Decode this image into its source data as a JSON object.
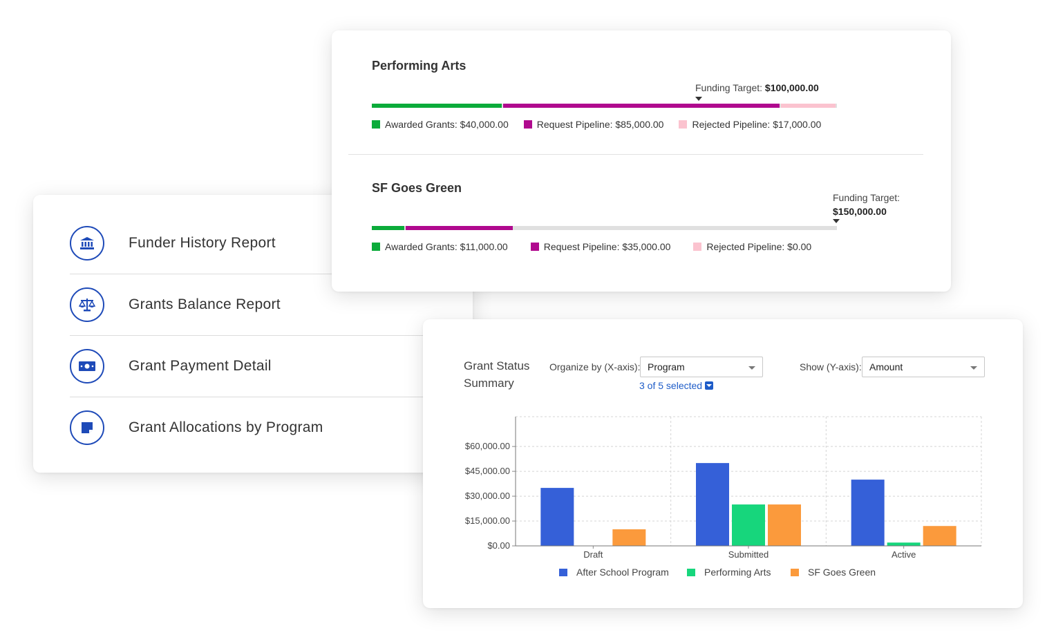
{
  "reports": {
    "items": [
      {
        "label": "Funder History Report",
        "icon": "bank-icon"
      },
      {
        "label": "Grants Balance Report",
        "icon": "scales-icon"
      },
      {
        "label": "Grant Payment Detail",
        "icon": "banknote-icon"
      },
      {
        "label": "Grant Allocations by Program",
        "icon": "note-icon"
      }
    ]
  },
  "funding": {
    "programs": [
      {
        "title": "Performing Arts",
        "target_label": "Funding Target:",
        "target_value": "$100,000.00",
        "awarded_label": "Awarded Grants: $40,000.00",
        "request_label": "Request Pipeline: $85,000.00",
        "rejected_label": "Rejected Pipeline: $17,000.00",
        "awarded": 40000,
        "request": 85000,
        "rejected": 17000,
        "target": 100000
      },
      {
        "title": "SF Goes Green",
        "target_label": "Funding Target:",
        "target_value": "$150,000.00",
        "awarded_label": "Awarded Grants: $11,000.00",
        "request_label": "Request Pipeline: $35,000.00",
        "rejected_label": "Rejected Pipeline: $0.00",
        "awarded": 11000,
        "request": 35000,
        "rejected": 0,
        "target": 150000
      }
    ],
    "colors": {
      "awarded": "#0bab3a",
      "request": "#b0098e",
      "rejected": "#fbc3cf",
      "remaining": "#e0e0e0"
    }
  },
  "chart_controls": {
    "title_line1": "Grant Status",
    "title_line2": "Summary",
    "organize_label": "Organize by (X-axis):",
    "organize_value": "Program",
    "selected_text": "3 of 5 selected",
    "show_label": "Show (Y-axis):",
    "show_value": "Amount"
  },
  "chart_data": {
    "type": "bar",
    "title": "Grant Status Summary",
    "categories": [
      "Draft",
      "Submitted",
      "Active"
    ],
    "series": [
      {
        "name": "After School Program",
        "color": "#3560d8",
        "values": [
          35000,
          50000,
          40000
        ]
      },
      {
        "name": "Performing Arts",
        "color": "#17d67c",
        "values": [
          0,
          25000,
          2000
        ]
      },
      {
        "name": "SF Goes Green",
        "color": "#fb9a3c",
        "values": [
          10000,
          25000,
          12000
        ]
      }
    ],
    "yticks": [
      0,
      15000,
      30000,
      45000,
      60000
    ],
    "ytick_labels": [
      "$0.00",
      "$15,000.00",
      "$30,000.00",
      "$45,000.00",
      "$60,000.00"
    ],
    "ylim": [
      0,
      78000
    ],
    "grid": true,
    "legend": "bottom"
  }
}
